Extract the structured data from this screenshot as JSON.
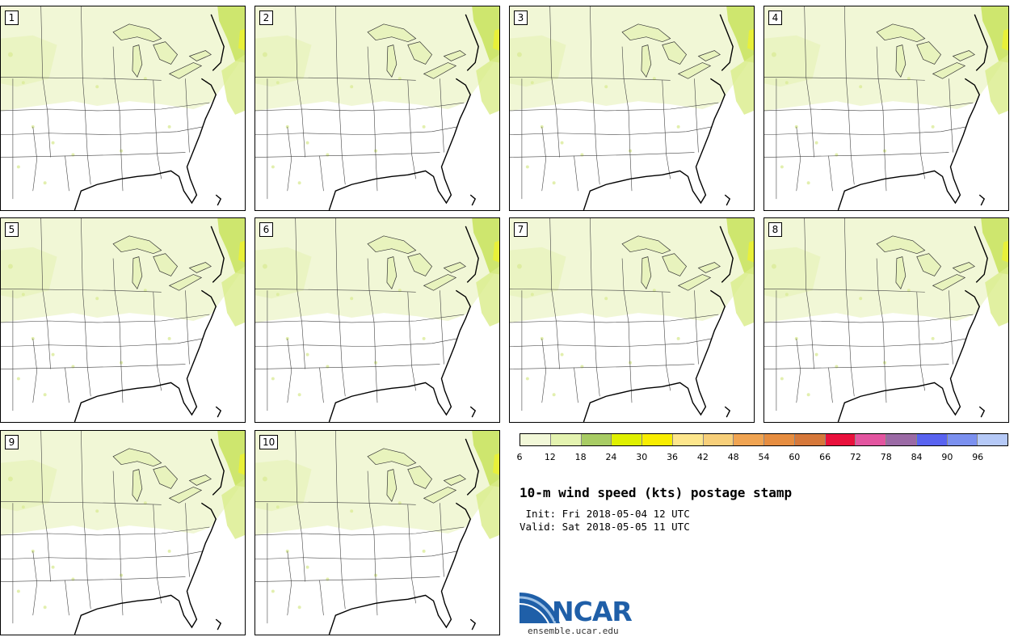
{
  "members": [
    "1",
    "2",
    "3",
    "4",
    "5",
    "6",
    "7",
    "8",
    "9",
    "10"
  ],
  "colorbar": {
    "colors": [
      "#f2f8d8",
      "#e4f3b0",
      "#a8cc64",
      "#dff000",
      "#f8ed00",
      "#fde68c",
      "#f7cf7a",
      "#f0a452",
      "#e68d40",
      "#d6783a",
      "#e9113c",
      "#e355a0",
      "#9b6aa5",
      "#5963f0",
      "#7b90ef",
      "#b5c9f7"
    ],
    "ticks": [
      "6",
      "12",
      "18",
      "24",
      "30",
      "36",
      "42",
      "48",
      "54",
      "60",
      "66",
      "72",
      "78",
      "84",
      "90",
      "96"
    ]
  },
  "title": "10-m wind speed (kts) postage stamp",
  "init": " Init: Fri 2018-05-04 12 UTC",
  "valid": "Valid: Sat 2018-05-05 11 UTC",
  "logo": {
    "text": "NCAR",
    "url": "ensemble.ucar.edu",
    "brand_color": "#1f5fa8"
  },
  "map_colors": {
    "light": "#eef5d2",
    "mid": "#dfef9e",
    "strong": "#c8e35c",
    "yellow": "#e8f03a"
  }
}
